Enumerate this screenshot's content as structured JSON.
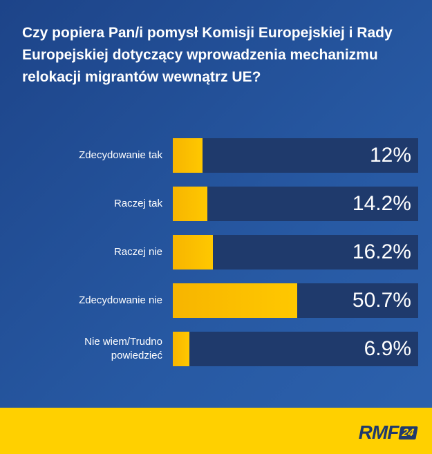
{
  "chart_data": {
    "type": "hbar",
    "title": "Czy popiera Pan/i pomysł Komisji Europejskiej i Rady Europejskiej dotyczący wprowadzenia mechanizmu relokacji migrantów wewnątrz UE?",
    "categories": [
      "Zdecydowanie tak",
      "Raczej tak",
      "Raczej nie",
      "Zdecydowanie nie",
      "Nie wiem/Trudno powiedzieć"
    ],
    "values": [
      12,
      14.2,
      16.2,
      50.7,
      6.9
    ],
    "value_labels": [
      "12%",
      "14.2%",
      "16.2%",
      "50.7%",
      "6.9%"
    ],
    "xlim": [
      0,
      100
    ],
    "color": "#ffc800",
    "track_color": "#1f3a6c"
  },
  "logo": {
    "text": "RMF",
    "badge": "24"
  }
}
